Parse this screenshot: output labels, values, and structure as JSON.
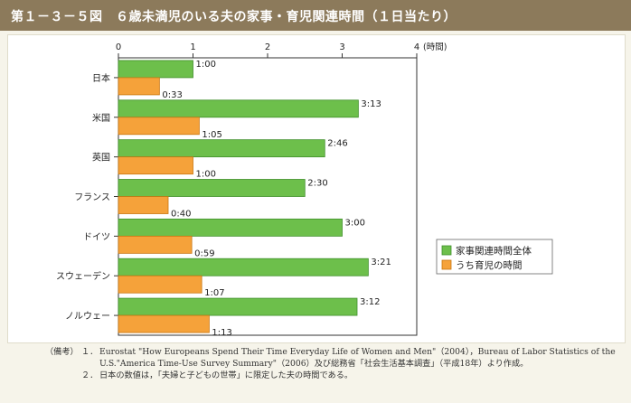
{
  "title": "第１－３－５図　６歳未満児のいる夫の家事・育児関連時間（１日当たり）",
  "colors": {
    "title_bg": "#8c7a5b",
    "series_total": "#6dbf4b",
    "series_childcare": "#f5a23a"
  },
  "chart_data": {
    "type": "bar",
    "orientation": "horizontal",
    "unit": "(時間)",
    "xlim": [
      0,
      4
    ],
    "x_ticks": [
      "0",
      "1",
      "2",
      "3",
      "4"
    ],
    "categories": [
      "日本",
      "米国",
      "英国",
      "フランス",
      "ドイツ",
      "スウェーデン",
      "ノルウェー"
    ],
    "series": [
      {
        "name": "家事関連時間全体",
        "values": [
          1.0,
          3.2167,
          2.7667,
          2.5,
          3.0,
          3.35,
          3.2
        ],
        "labels": [
          "1:00",
          "3:13",
          "2:46",
          "2:30",
          "3:00",
          "3:21",
          "3:12"
        ]
      },
      {
        "name": "うち育児の時間",
        "values": [
          0.55,
          1.0833,
          1.0,
          0.6667,
          0.9833,
          1.1167,
          1.2167
        ],
        "labels": [
          "0:33",
          "1:05",
          "1:00",
          "0:40",
          "0:59",
          "1:07",
          "1:13"
        ]
      }
    ],
    "legend_position": "right",
    "grid": false
  },
  "notes": {
    "label": "（備考）",
    "items": [
      {
        "num": "１．",
        "text": "Eurostat \"How Europeans Spend Their Time Everyday Life of Women and Men\"（2004），Bureau of Labor Statistics of the U.S.\"America Time-Use Survey Summary\"（2006）及び総務省「社会生活基本調査」（平成18年）より作成。"
      },
      {
        "num": "２．",
        "text": "日本の数値は，「夫婦と子どもの世帯」に限定した夫の時間である。"
      }
    ]
  }
}
